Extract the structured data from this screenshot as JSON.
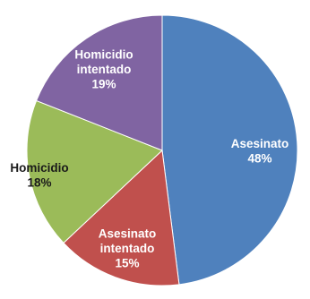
{
  "chart_data": {
    "type": "pie",
    "title": "",
    "slices": [
      {
        "label_lines": [
          "Asesinato"
        ],
        "percent_text": "48%",
        "value": 48,
        "color": "#4f81bd",
        "label_color": "#ffffff"
      },
      {
        "label_lines": [
          "Asesinato",
          "intentado"
        ],
        "percent_text": "15%",
        "value": 15,
        "color": "#c0504d",
        "label_color": "#ffffff"
      },
      {
        "label_lines": [
          "Homicidio"
        ],
        "percent_text": "18%",
        "value": 18,
        "color": "#9bbb59",
        "label_color": "#1a1a1a"
      },
      {
        "label_lines": [
          "Homicidio",
          "intentado"
        ],
        "percent_text": "19%",
        "value": 19,
        "color": "#8064a2",
        "label_color": "#ffffff"
      }
    ]
  }
}
